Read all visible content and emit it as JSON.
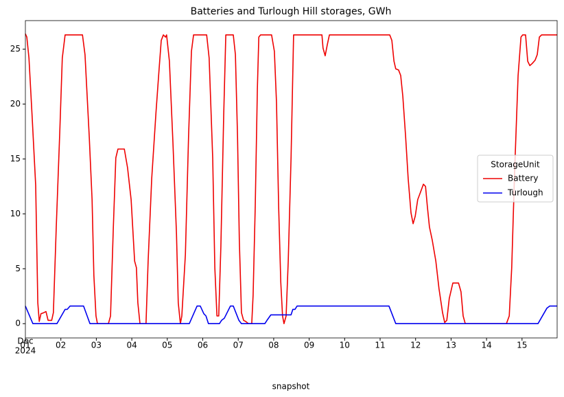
{
  "chart_data": {
    "type": "line",
    "title": "Batteries and Turlough Hill storages, GWh",
    "xlabel": "snapshot",
    "legend_title": "StorageUnit",
    "legend": "center right",
    "xtick_month": "Dec",
    "xtick_year": "2024",
    "xlim": [
      0,
      14.99
    ],
    "ylim": [
      -1.3,
      27.6
    ],
    "xticks": [
      {
        "value": 0,
        "label": "01"
      },
      {
        "value": 1,
        "label": "02"
      },
      {
        "value": 2,
        "label": "03"
      },
      {
        "value": 3,
        "label": "04"
      },
      {
        "value": 4,
        "label": "05"
      },
      {
        "value": 5,
        "label": "06"
      },
      {
        "value": 6,
        "label": "07"
      },
      {
        "value": 7,
        "label": "08"
      },
      {
        "value": 8,
        "label": "09"
      },
      {
        "value": 9,
        "label": "10"
      },
      {
        "value": 10,
        "label": "11"
      },
      {
        "value": 11,
        "label": "12"
      },
      {
        "value": 12,
        "label": "13"
      },
      {
        "value": 13,
        "label": "14"
      },
      {
        "value": 14,
        "label": "15"
      }
    ],
    "yticks": [
      0,
      5,
      10,
      15,
      20,
      25
    ],
    "series": [
      {
        "name": "Battery",
        "color": "#ee0000",
        "x": [
          0,
          0.04,
          0.1,
          0.19,
          0.29,
          0.35,
          0.39,
          0.44,
          0.52,
          0.58,
          0.64,
          0.74,
          0.79,
          0.87,
          0.97,
          1.04,
          1.12,
          1.61,
          1.68,
          1.8,
          1.88,
          1.93,
          1.99,
          2.03,
          2.34,
          2.4,
          2.48,
          2.55,
          2.61,
          2.79,
          2.88,
          2.98,
          3.08,
          3.13,
          3.17,
          3.23,
          3.4,
          3.46,
          3.56,
          3.68,
          3.77,
          3.83,
          3.89,
          3.95,
          3.98,
          4.06,
          4.16,
          4.26,
          4.31,
          4.37,
          4.41,
          4.51,
          4.6,
          4.68,
          4.74,
          5.11,
          5.18,
          5.28,
          5.34,
          5.4,
          5.45,
          5.51,
          5.59,
          5.65,
          5.86,
          5.92,
          5.98,
          6.03,
          6.09,
          6.15,
          6.21,
          6.29,
          6.38,
          6.42,
          6.48,
          6.54,
          6.58,
          6.63,
          6.94,
          7.02,
          7.08,
          7.14,
          7.2,
          7.25,
          7.29,
          7.35,
          7.41,
          7.49,
          7.56,
          8.36,
          8.39,
          8.45,
          8.51,
          8.57,
          10.27,
          10.33,
          10.39,
          10.44,
          10.52,
          10.58,
          10.64,
          10.72,
          10.79,
          10.87,
          10.93,
          10.99,
          11.06,
          11.14,
          11.22,
          11.28,
          11.33,
          11.39,
          11.47,
          11.57,
          11.66,
          11.76,
          11.82,
          11.88,
          11.95,
          12.05,
          12.21,
          12.28,
          12.34,
          12.4,
          13.56,
          13.64,
          13.71,
          13.79,
          13.89,
          13.97,
          14.02,
          14.1,
          14.16,
          14.22,
          14.29,
          14.37,
          14.43,
          14.49,
          14.55,
          14.99
        ],
        "values": [
          26.4,
          26.1,
          24.2,
          18.9,
          12.6,
          1.9,
          0.2,
          0.9,
          1.0,
          1.1,
          0.3,
          0.3,
          1.0,
          8.8,
          17.6,
          24.2,
          26.3,
          26.3,
          24.5,
          17.0,
          11.3,
          4.4,
          0.7,
          0,
          0,
          0.7,
          8.8,
          15.1,
          15.9,
          15.9,
          14.2,
          11.3,
          5.7,
          5.1,
          1.9,
          0,
          0,
          5.7,
          13.2,
          19.2,
          23.2,
          25.8,
          26.3,
          26.1,
          26.3,
          23.9,
          16.4,
          8.2,
          1.9,
          0,
          0.7,
          6.3,
          17.0,
          24.8,
          26.3,
          26.3,
          24.2,
          15.1,
          5.1,
          0.7,
          0.7,
          7.0,
          18.9,
          26.3,
          26.3,
          24.5,
          17.0,
          7.6,
          1.0,
          0.3,
          0.2,
          0,
          0,
          2.6,
          10.7,
          21.4,
          26.1,
          26.3,
          26.3,
          24.8,
          20.1,
          10.7,
          3.8,
          0.7,
          0,
          0.7,
          5.7,
          15.1,
          26.3,
          26.3,
          25.1,
          24.4,
          25.4,
          26.3,
          26.3,
          25.8,
          23.9,
          23.2,
          23.1,
          22.6,
          20.7,
          17.0,
          13.2,
          10.1,
          9.1,
          9.8,
          11.3,
          12.0,
          12.7,
          12.5,
          10.7,
          8.8,
          7.6,
          5.7,
          3.2,
          1.0,
          0.1,
          0.3,
          2.3,
          3.7,
          3.7,
          2.9,
          0.7,
          0,
          0,
          0.7,
          5.1,
          13.8,
          22.6,
          26.1,
          26.3,
          26.3,
          23.9,
          23.5,
          23.7,
          24.0,
          24.5,
          26.1,
          26.3,
          26.3
        ]
      },
      {
        "name": "Turlough",
        "color": "#0000ee",
        "x": [
          0,
          0.21,
          0.89,
          1.12,
          1.18,
          1.26,
          1.64,
          1.82,
          4.62,
          4.84,
          4.93,
          5.03,
          5.09,
          5.16,
          5.47,
          5.53,
          5.61,
          5.78,
          5.86,
          6.02,
          6.09,
          6.75,
          6.81,
          6.92,
          7.41,
          7.49,
          7.54,
          7.6,
          7.66,
          10.25,
          10.44,
          14.45,
          14.7,
          14.78,
          14.99
        ],
        "values": [
          1.6,
          0,
          0,
          1.3,
          1.3,
          1.6,
          1.6,
          0,
          0,
          1.6,
          1.6,
          0.9,
          0.7,
          0,
          0,
          0.3,
          0.5,
          1.6,
          1.6,
          0.3,
          0,
          0,
          0.3,
          0.8,
          0.8,
          0.8,
          1.3,
          1.3,
          1.6,
          1.6,
          0,
          0,
          1.4,
          1.6,
          1.6
        ]
      }
    ]
  }
}
